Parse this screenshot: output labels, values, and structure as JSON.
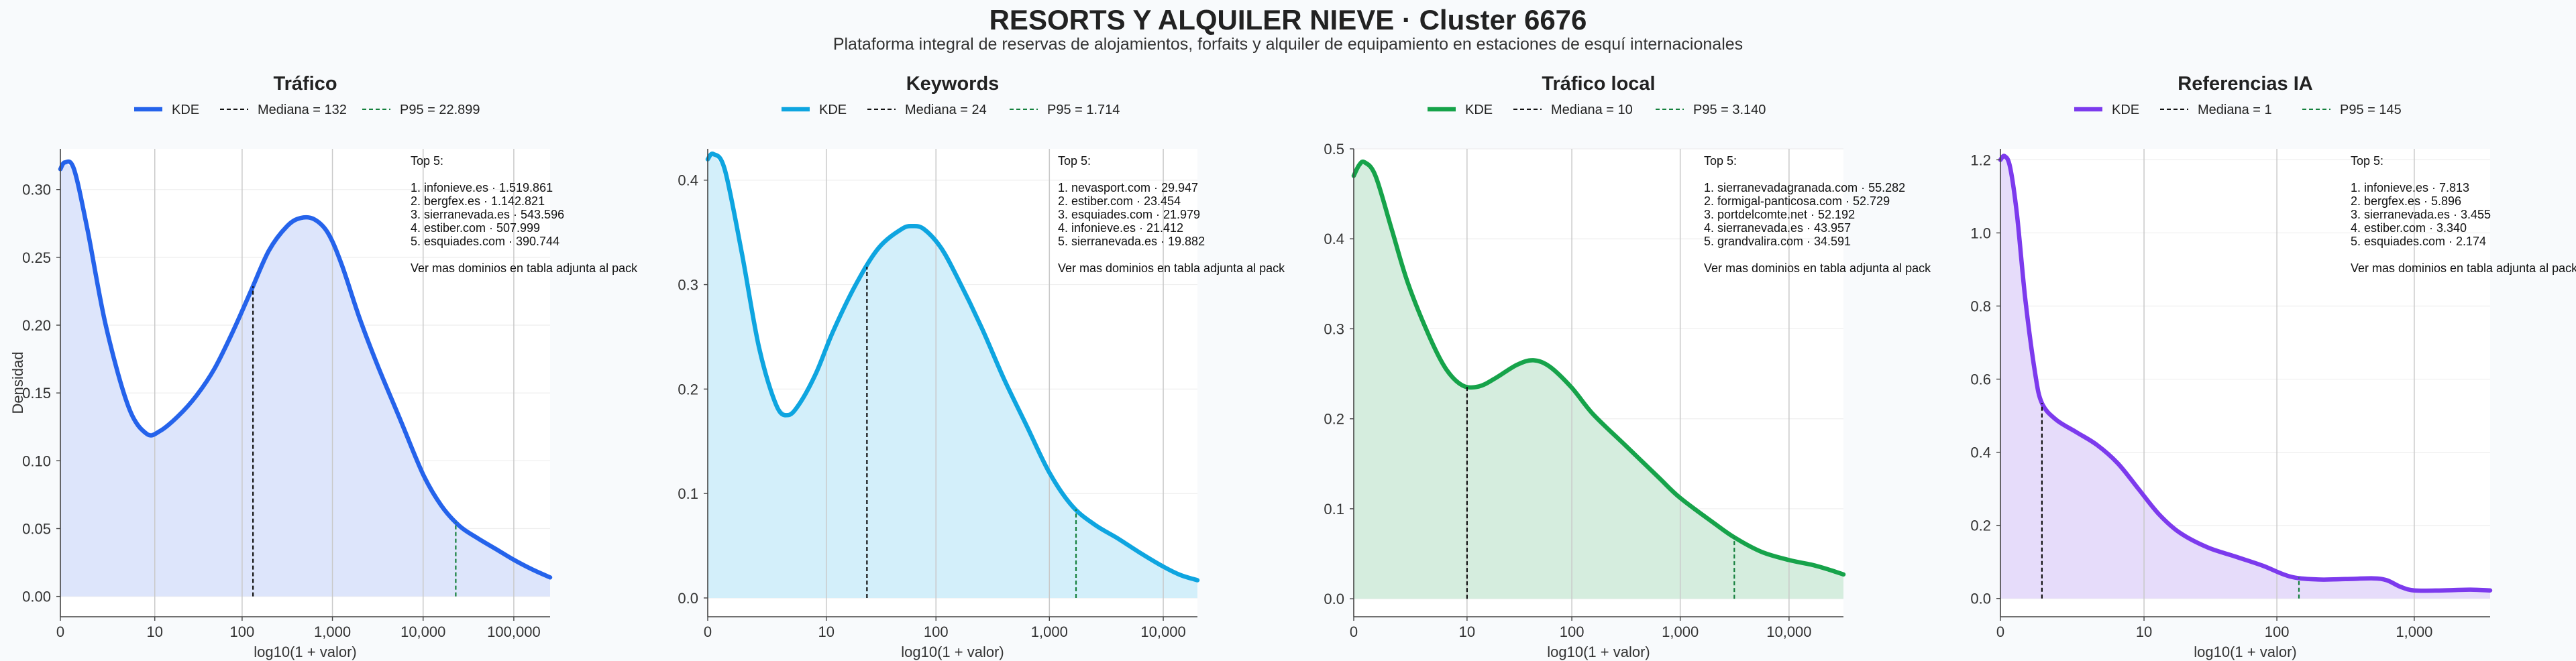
{
  "title": "RESORTS Y ALQUILER NIEVE · Cluster 6676",
  "subtitle": "Plataforma integral de reservas de alojamientos, forfaits y alquiler de equipamiento en estaciones de esquí internacionales",
  "ylabel": "Densidad",
  "chart_data": [
    {
      "type": "area",
      "title": "Tráfico",
      "xlabel": "log10(1 + valor)",
      "ylabel": "Densidad",
      "color": "#2563eb",
      "fill": "#dbe4fb",
      "median_color": "#111111",
      "p95_color": "#15803d",
      "x_scale": "log10(1+x)",
      "xlim": [
        0,
        5.4
      ],
      "ylim": [
        -0.015,
        0.33
      ],
      "xticks": [
        0,
        1.041,
        2.004,
        3.0,
        4.0,
        5.0
      ],
      "xtick_labels": [
        "0",
        "10",
        "100",
        "1,000",
        "10,000",
        "100,000"
      ],
      "yticks": [
        0,
        0.05,
        0.1,
        0.15,
        0.2,
        0.25,
        0.3
      ],
      "ytick_labels": [
        "0.00",
        "0.05",
        "0.10",
        "0.15",
        "0.20",
        "0.25",
        "0.30"
      ],
      "legend": {
        "kde": "KDE",
        "median": "Mediana = 132",
        "p95": "P95 = 22.899"
      },
      "median": {
        "value": 132,
        "x": 2.124
      },
      "p95": {
        "value": 22899,
        "x": 4.36
      },
      "kde": {
        "x": [
          0,
          0.05,
          0.15,
          0.3,
          0.5,
          0.75,
          0.95,
          1.1,
          1.3,
          1.5,
          1.7,
          1.9,
          2.1,
          2.3,
          2.5,
          2.65,
          2.8,
          2.95,
          3.1,
          3.3,
          3.5,
          3.75,
          4.0,
          4.2,
          4.4,
          4.6,
          4.8,
          5.0,
          5.2,
          5.4
        ],
        "y": [
          0.315,
          0.32,
          0.315,
          0.27,
          0.2,
          0.14,
          0.12,
          0.122,
          0.133,
          0.148,
          0.168,
          0.195,
          0.225,
          0.255,
          0.273,
          0.279,
          0.278,
          0.268,
          0.245,
          0.205,
          0.17,
          0.13,
          0.09,
          0.067,
          0.052,
          0.043,
          0.035,
          0.027,
          0.02,
          0.014
        ]
      },
      "annotation": [
        "Top 5:",
        "",
        "1. infonieve.es · 1.519.861",
        "2. bergfex.es · 1.142.821",
        "3. sierranevada.es · 543.596",
        "4. estiber.com · 507.999",
        "5. esquiades.com · 390.744",
        "",
        "Ver mas dominios en tabla adjunta al pack"
      ]
    },
    {
      "type": "area",
      "title": "Keywords",
      "xlabel": "log10(1 + valor)",
      "color": "#0ea5e0",
      "fill": "#d1eefa",
      "median_color": "#111111",
      "p95_color": "#15803d",
      "x_scale": "log10(1+x)",
      "xlim": [
        0,
        4.3
      ],
      "ylim": [
        -0.018,
        0.43
      ],
      "xticks": [
        0,
        1.041,
        2.004,
        3.0,
        4.0
      ],
      "xtick_labels": [
        "0",
        "10",
        "100",
        "1,000",
        "10,000"
      ],
      "yticks": [
        0,
        0.1,
        0.2,
        0.3,
        0.4
      ],
      "ytick_labels": [
        "0.0",
        "0.1",
        "0.2",
        "0.3",
        "0.4"
      ],
      "legend": {
        "kde": "KDE",
        "median": "Mediana = 24",
        "p95": "P95 = 1.714"
      },
      "median": {
        "value": 24,
        "x": 1.398
      },
      "p95": {
        "value": 1714,
        "x": 3.234
      },
      "kde": {
        "x": [
          0,
          0.05,
          0.15,
          0.3,
          0.45,
          0.6,
          0.7,
          0.8,
          0.95,
          1.1,
          1.3,
          1.5,
          1.7,
          1.8,
          1.9,
          2.05,
          2.2,
          2.4,
          2.6,
          2.8,
          3.0,
          3.2,
          3.4,
          3.6,
          3.8,
          4.0,
          4.15,
          4.3
        ],
        "y": [
          0.42,
          0.425,
          0.41,
          0.33,
          0.24,
          0.185,
          0.175,
          0.185,
          0.215,
          0.255,
          0.3,
          0.335,
          0.353,
          0.356,
          0.353,
          0.335,
          0.305,
          0.26,
          0.21,
          0.165,
          0.12,
          0.088,
          0.07,
          0.057,
          0.043,
          0.03,
          0.022,
          0.017
        ]
      },
      "annotation": [
        "Top 5:",
        "",
        "1. nevasport.com · 29.947",
        "2. estiber.com · 23.454",
        "3. esquiades.com · 21.979",
        "4. infonieve.es · 21.412",
        "5. sierranevada.es · 19.882",
        "",
        "Ver mas dominios en tabla adjunta al pack"
      ]
    },
    {
      "type": "area",
      "title": "Tráfico local",
      "xlabel": "log10(1 + valor)",
      "color": "#16a34a",
      "fill": "#d3ecdc",
      "median_color": "#111111",
      "p95_color": "#15803d",
      "x_scale": "log10(1+x)",
      "xlim": [
        0,
        4.5
      ],
      "ylim": [
        -0.02,
        0.5
      ],
      "xticks": [
        0,
        1.041,
        2.004,
        3.0,
        4.0
      ],
      "xtick_labels": [
        "0",
        "10",
        "100",
        "1,000",
        "10,000"
      ],
      "yticks": [
        0,
        0.1,
        0.2,
        0.3,
        0.4,
        0.5
      ],
      "ytick_labels": [
        "0.0",
        "0.1",
        "0.2",
        "0.3",
        "0.4",
        "0.5"
      ],
      "legend": {
        "kde": "KDE",
        "median": "Mediana = 10",
        "p95": "P95 = 3.140"
      },
      "median": {
        "value": 10,
        "x": 1.041
      },
      "p95": {
        "value": 3140,
        "x": 3.497
      },
      "kde": {
        "x": [
          0,
          0.05,
          0.1,
          0.2,
          0.35,
          0.5,
          0.7,
          0.85,
          1.0,
          1.15,
          1.3,
          1.5,
          1.65,
          1.8,
          2.0,
          2.2,
          2.5,
          2.8,
          3.0,
          3.3,
          3.5,
          3.75,
          4.0,
          4.2,
          4.35,
          4.5
        ],
        "y": [
          0.47,
          0.482,
          0.485,
          0.47,
          0.41,
          0.35,
          0.29,
          0.255,
          0.237,
          0.236,
          0.245,
          0.26,
          0.265,
          0.258,
          0.235,
          0.205,
          0.17,
          0.135,
          0.112,
          0.085,
          0.068,
          0.052,
          0.043,
          0.038,
          0.033,
          0.027
        ]
      },
      "annotation": [
        "Top 5:",
        "",
        "1. sierranevadagranada.com · 55.282",
        "2. formigal-panticosa.com · 52.729",
        "3. portdelcomte.net · 52.192",
        "4. sierranevada.es · 43.957",
        "5. grandvalira.com · 34.591",
        "",
        "Ver mas dominios en tabla adjunta al pack"
      ]
    },
    {
      "type": "area",
      "title": "Referencias IA",
      "xlabel": "log10(1 + valor)",
      "color": "#7c3aed",
      "fill": "#e5dafa",
      "median_color": "#111111",
      "p95_color": "#15803d",
      "x_scale": "log10(1+x)",
      "xlim": [
        0,
        3.55
      ],
      "ylim": [
        -0.05,
        1.23
      ],
      "xticks": [
        0,
        1.041,
        2.004,
        3.0
      ],
      "xtick_labels": [
        "0",
        "10",
        "100",
        "1,000"
      ],
      "yticks": [
        0,
        0.2,
        0.4,
        0.6,
        0.8,
        1.0,
        1.2
      ],
      "ytick_labels": [
        "0.0",
        "0.2",
        "0.4",
        "0.6",
        "0.8",
        "1.0",
        "1.2"
      ],
      "legend": {
        "kde": "KDE",
        "median": "Mediana = 1",
        "p95": "P95 = 145"
      },
      "median": {
        "value": 1,
        "x": 0.301
      },
      "p95": {
        "value": 145,
        "x": 2.164
      },
      "kde": {
        "x": [
          0,
          0.03,
          0.07,
          0.12,
          0.18,
          0.25,
          0.3,
          0.4,
          0.55,
          0.7,
          0.85,
          1.0,
          1.15,
          1.3,
          1.5,
          1.7,
          1.9,
          2.1,
          2.3,
          2.5,
          2.7,
          2.8,
          2.9,
          3.0,
          3.2,
          3.4,
          3.55
        ],
        "y": [
          1.2,
          1.21,
          1.18,
          1.05,
          0.82,
          0.62,
          0.535,
          0.49,
          0.455,
          0.42,
          0.37,
          0.3,
          0.23,
          0.18,
          0.14,
          0.115,
          0.09,
          0.06,
          0.052,
          0.053,
          0.055,
          0.05,
          0.032,
          0.022,
          0.022,
          0.024,
          0.022
        ]
      },
      "annotation": [
        "Top 5:",
        "",
        "1. infonieve.es · 7.813",
        "2. bergfex.es · 5.896",
        "3. sierranevada.es · 3.455",
        "4. estiber.com · 3.340",
        "5. esquiades.com · 2.174",
        "",
        "Ver mas dominios en tabla adjunta al pack"
      ]
    }
  ]
}
